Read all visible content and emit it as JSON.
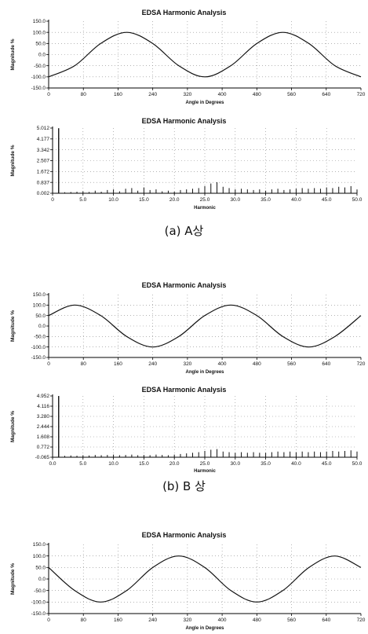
{
  "chart_data": [
    {
      "type": "line",
      "title": "EDSA Harmonic Analysis",
      "xlabel": "Angle in Degrees",
      "ylabel": "Magnitude %",
      "x_ticks": [
        "0",
        "80",
        "160",
        "240",
        "320",
        "400",
        "480",
        "560",
        "640",
        "720"
      ],
      "y_ticks": [
        "150.0",
        "100.0",
        "50.0",
        "0.0",
        "-50.0",
        "-100.0",
        "-150.0"
      ],
      "xlim": [
        0,
        720
      ],
      "ylim": [
        -150,
        150
      ],
      "grid": true,
      "series": [
        {
          "x": [
            0,
            60,
            120,
            180,
            240,
            300,
            360,
            420,
            480,
            540,
            600,
            660,
            720
          ],
          "values": [
            -100,
            -50,
            50,
            100,
            50,
            -50,
            -100,
            -50,
            50,
            100,
            50,
            -50,
            -100
          ]
        }
      ]
    },
    {
      "type": "bar",
      "title": "EDSA Harmonic Analysis",
      "xlabel": "Harmonic",
      "ylabel": "Magnitude %",
      "x_ticks": [
        "0",
        "5.0",
        "10.0",
        "15.0",
        "20.0",
        "25.0",
        "30.0",
        "35.0",
        "40.0",
        "45.0",
        "50.0"
      ],
      "y_ticks": [
        "5.012",
        "4.177",
        "3.342",
        "2.507",
        "1.672",
        "0.837",
        "0.002"
      ],
      "xlim": [
        0,
        50
      ],
      "ylim": [
        0.002,
        5.012
      ],
      "grid": true,
      "x": [
        1,
        2,
        3,
        4,
        5,
        6,
        7,
        8,
        9,
        10,
        11,
        12,
        13,
        14,
        15,
        16,
        17,
        18,
        19,
        20,
        21,
        22,
        23,
        24,
        25,
        26,
        27,
        28,
        29,
        30,
        31,
        32,
        33,
        34,
        35,
        36,
        37,
        38,
        39,
        40,
        41,
        42,
        43,
        44,
        45,
        46,
        47,
        48,
        49,
        50
      ],
      "values": [
        5.0,
        0.08,
        0.1,
        0.12,
        0.15,
        0.1,
        0.2,
        0.12,
        0.25,
        0.3,
        0.15,
        0.35,
        0.4,
        0.2,
        0.45,
        0.25,
        0.3,
        0.15,
        0.2,
        0.12,
        0.25,
        0.3,
        0.35,
        0.4,
        0.55,
        0.75,
        0.85,
        0.5,
        0.4,
        0.3,
        0.35,
        0.3,
        0.25,
        0.3,
        0.2,
        0.3,
        0.35,
        0.25,
        0.3,
        0.35,
        0.4,
        0.35,
        0.4,
        0.35,
        0.45,
        0.4,
        0.5,
        0.45,
        0.55,
        0.3
      ]
    },
    {
      "type": "line",
      "title": "EDSA Harmonic Analysis",
      "xlabel": "Angle in Degrees",
      "ylabel": "Magnitude %",
      "x_ticks": [
        "0",
        "80",
        "160",
        "240",
        "320",
        "400",
        "480",
        "560",
        "640",
        "720"
      ],
      "y_ticks": [
        "150.0",
        "100.0",
        "50.0",
        "0.0",
        "-50.0",
        "-100.0",
        "-150.0"
      ],
      "xlim": [
        0,
        720
      ],
      "ylim": [
        -150,
        150
      ],
      "grid": true,
      "series": [
        {
          "x": [
            0,
            60,
            120,
            180,
            240,
            300,
            360,
            420,
            480,
            540,
            600,
            660,
            720
          ],
          "values": [
            50,
            100,
            50,
            -50,
            -100,
            -50,
            50,
            100,
            50,
            -50,
            -100,
            -50,
            50
          ]
        }
      ]
    },
    {
      "type": "bar",
      "title": "EDSA Harmonic Analysis",
      "xlabel": "Harmonic",
      "ylabel": "Magnitude %",
      "x_ticks": [
        "0.0",
        "5.0",
        "10.0",
        "15.0",
        "20.0",
        "25.0",
        "30.0",
        "35.0",
        "40.0",
        "45.0",
        "50.0"
      ],
      "y_ticks": [
        "4.952",
        "4.116",
        "3.280",
        "2.444",
        "1.608",
        "0.772",
        "-0.065"
      ],
      "xlim": [
        0,
        50
      ],
      "ylim": [
        -0.065,
        4.952
      ],
      "grid": true,
      "x": [
        1,
        2,
        3,
        4,
        5,
        6,
        7,
        8,
        9,
        10,
        11,
        12,
        13,
        14,
        15,
        16,
        17,
        18,
        19,
        20,
        21,
        22,
        23,
        24,
        25,
        26,
        27,
        28,
        29,
        30,
        31,
        32,
        33,
        34,
        35,
        36,
        37,
        38,
        39,
        40,
        41,
        42,
        43,
        44,
        45,
        46,
        47,
        48,
        49,
        50
      ],
      "values": [
        4.95,
        0.05,
        0.08,
        0.06,
        0.1,
        0.08,
        0.12,
        0.1,
        0.12,
        0.15,
        0.1,
        0.12,
        0.15,
        0.1,
        0.12,
        0.1,
        0.15,
        0.12,
        0.1,
        0.15,
        0.2,
        0.25,
        0.3,
        0.35,
        0.45,
        0.55,
        0.6,
        0.4,
        0.35,
        0.3,
        0.35,
        0.3,
        0.35,
        0.3,
        0.3,
        0.35,
        0.4,
        0.35,
        0.4,
        0.35,
        0.4,
        0.35,
        0.4,
        0.35,
        0.4,
        0.45,
        0.4,
        0.45,
        0.5,
        0.4
      ]
    },
    {
      "type": "line",
      "title": "EDSA Harmonic Analysis",
      "xlabel": "Angle in Degrees",
      "ylabel": "Magnitude %",
      "x_ticks": [
        "0",
        "80",
        "160",
        "240",
        "320",
        "400",
        "480",
        "560",
        "640",
        "720"
      ],
      "y_ticks": [
        "150.0",
        "100.0",
        "50.0",
        "0.0",
        "-50.0",
        "-100.0",
        "-150.0"
      ],
      "xlim": [
        0,
        720
      ],
      "ylim": [
        -150,
        150
      ],
      "grid": true,
      "series": [
        {
          "x": [
            0,
            60,
            120,
            180,
            240,
            300,
            360,
            420,
            480,
            540,
            600,
            660,
            720
          ],
          "values": [
            50,
            -50,
            -100,
            -50,
            50,
            100,
            50,
            -50,
            -100,
            -50,
            50,
            100,
            50
          ]
        }
      ]
    }
  ],
  "captions": [
    "(a) A상",
    "(b) B 상"
  ]
}
